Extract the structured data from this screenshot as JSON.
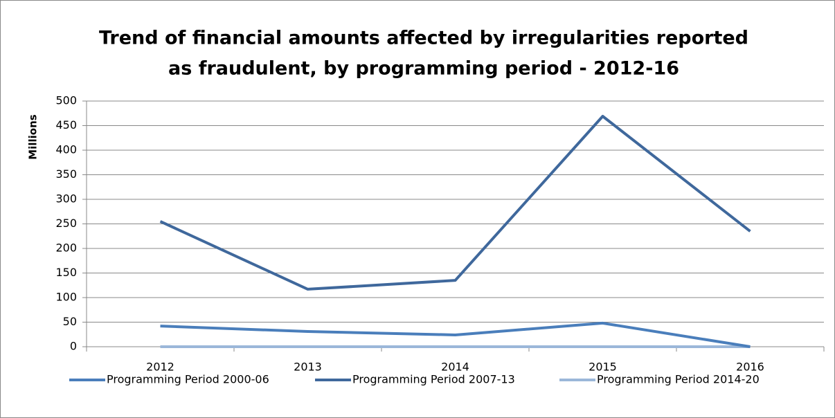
{
  "chart_data": {
    "type": "line",
    "title": [
      "Trend of financial amounts affected by irregularities reported",
      "as fraudulent, by programming period - 2012-16"
    ],
    "y_label": "Millions",
    "categories": [
      "2012",
      "2013",
      "2014",
      "2015",
      "2016"
    ],
    "series": [
      {
        "name": "Programming Period 2000-06",
        "color": "#4a7ebb",
        "values": [
          42,
          31,
          24,
          48,
          0
        ]
      },
      {
        "name": "Programming Period 2007-13",
        "color": "#3f689c",
        "values": [
          255,
          117,
          135,
          469,
          235
        ]
      },
      {
        "name": "Programming Period 2014-20",
        "color": "#9bb7d9",
        "values": [
          0,
          0,
          0,
          0,
          0
        ]
      }
    ],
    "ylim": [
      0,
      500
    ],
    "yticks": [
      0,
      50,
      100,
      150,
      200,
      250,
      300,
      350,
      400,
      450,
      500
    ],
    "grid": true,
    "legend": "bottom"
  }
}
